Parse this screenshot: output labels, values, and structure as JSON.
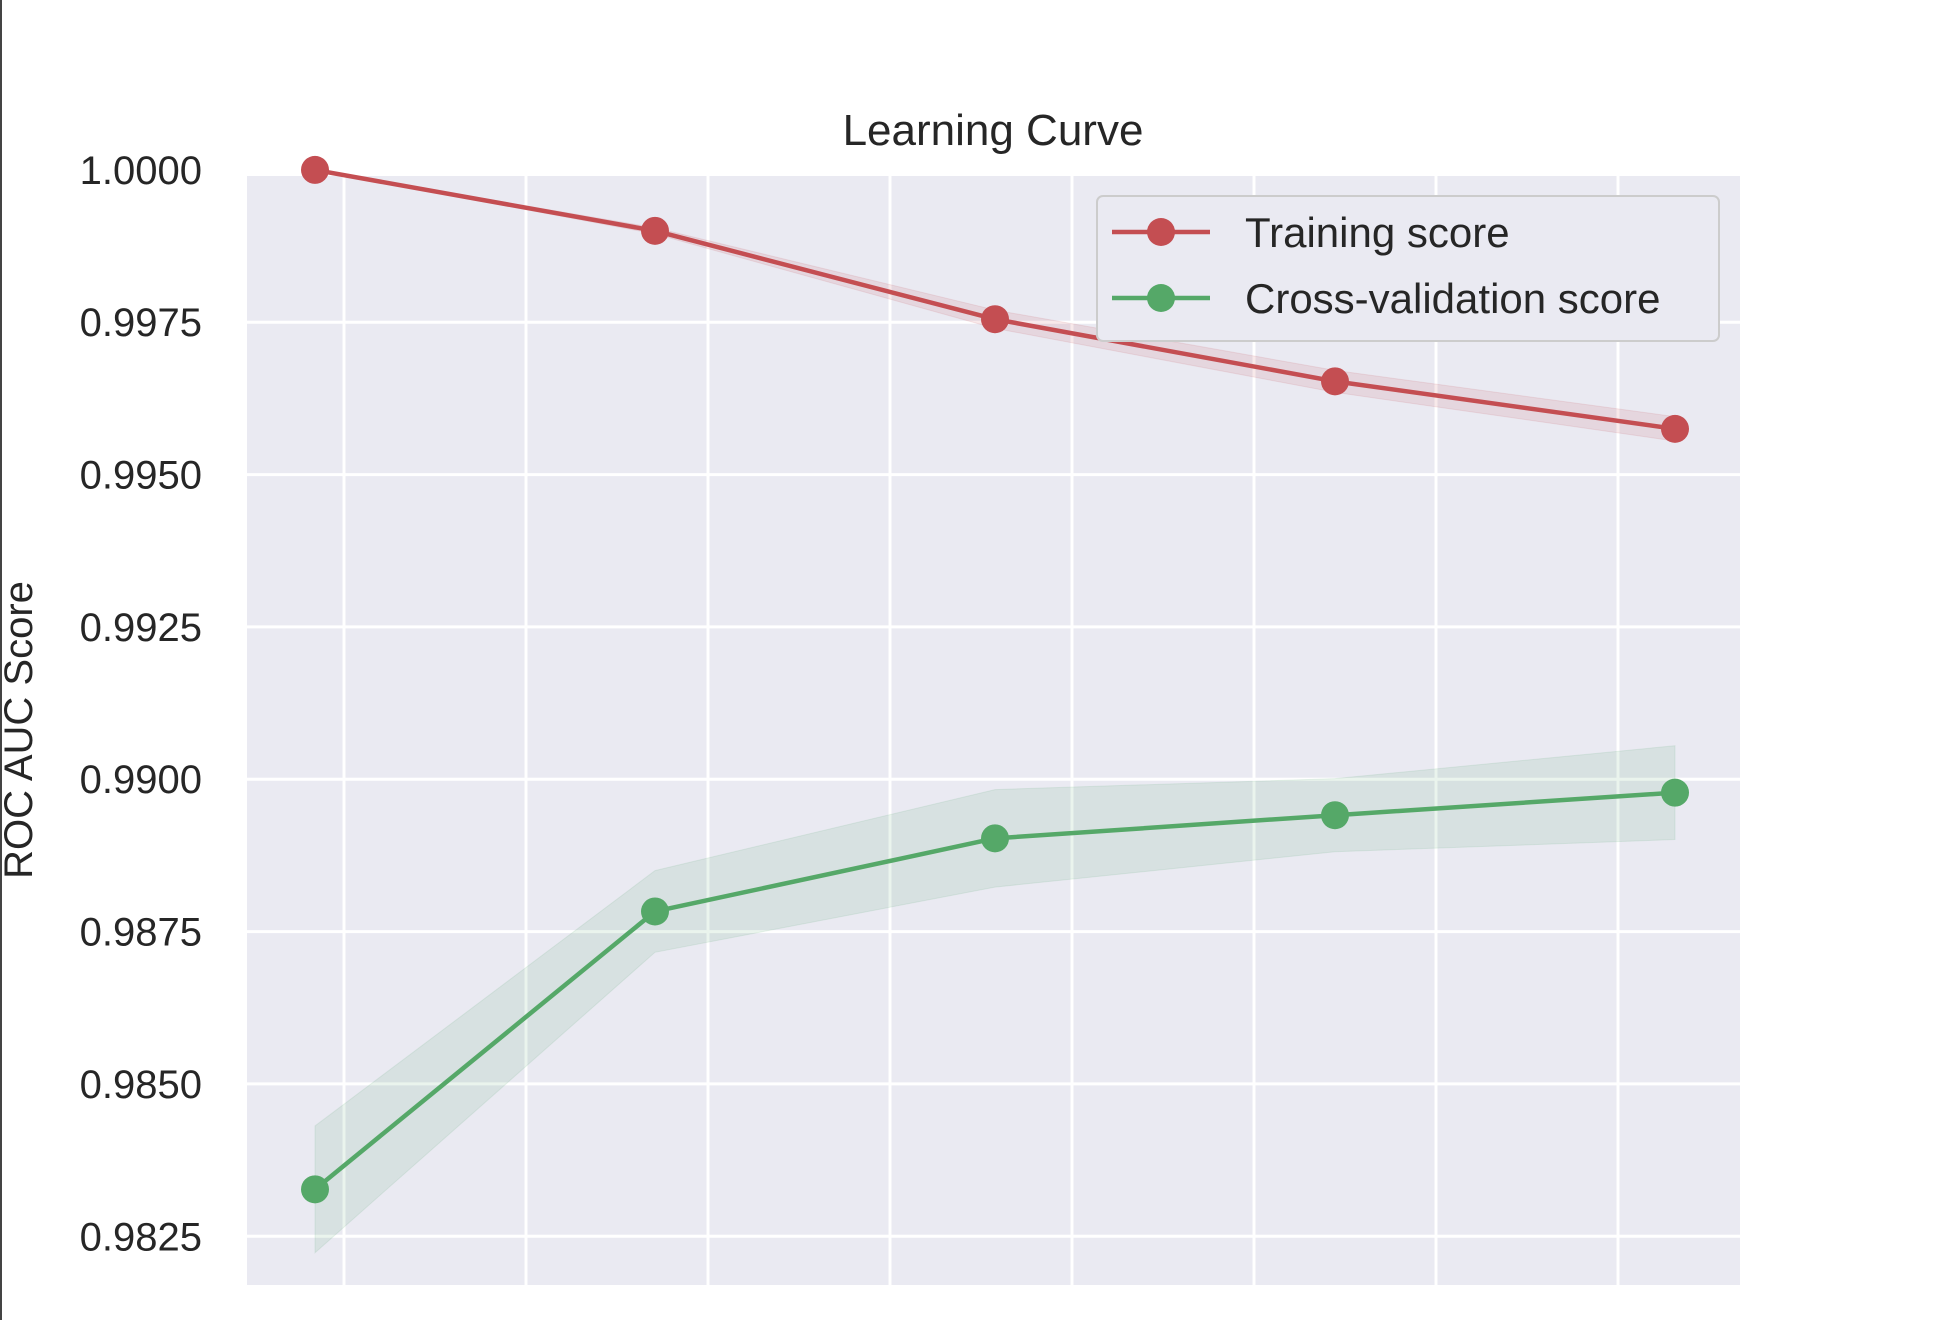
{
  "chart_data": {
    "type": "line",
    "title": "Learning Curve",
    "xlabel": "",
    "ylabel": "ROC AUC Score",
    "x": [
      1,
      2,
      3,
      4,
      5
    ],
    "ylim": [
      0.9817,
      0.9999
    ],
    "yticks": [
      "0.9825",
      "0.9850",
      "0.9875",
      "0.9900",
      "0.9925",
      "0.9950",
      "0.9975",
      "1.0000"
    ],
    "ytick_values": [
      0.9825,
      0.985,
      0.9875,
      0.99,
      0.9925,
      0.995,
      0.9975,
      1.0
    ],
    "grid": true,
    "legend_position": "top-right",
    "series": [
      {
        "name": "Training score",
        "color": "#c44e52",
        "values": [
          1.0,
          0.999,
          0.99755,
          0.99653,
          0.99575
        ],
        "band_low": [
          1.0,
          0.99895,
          0.9974,
          0.99635,
          0.99555
        ],
        "band_high": [
          1.0,
          0.99905,
          0.9977,
          0.99671,
          0.99595
        ]
      },
      {
        "name": "Cross-validation score",
        "color": "#55a868",
        "values": [
          0.98327,
          0.98783,
          0.98903,
          0.98941,
          0.98978
        ],
        "band_low": [
          0.98223,
          0.98716,
          0.98823,
          0.98881,
          0.98901
        ],
        "band_high": [
          0.98431,
          0.9885,
          0.98983,
          0.99001,
          0.99055
        ]
      }
    ]
  }
}
